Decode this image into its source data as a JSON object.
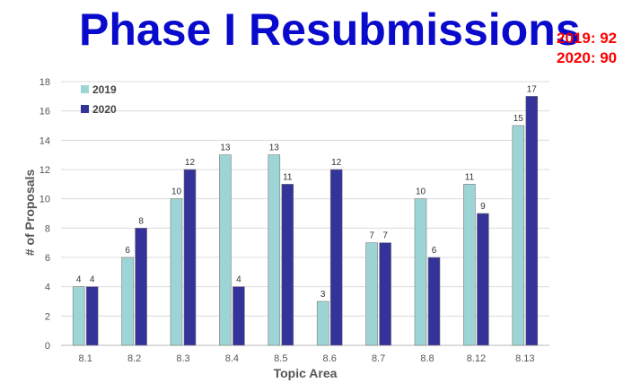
{
  "title": "Phase I Resubmissions",
  "totals": [
    {
      "label": "2019: 92"
    },
    {
      "label": "2020: 90"
    }
  ],
  "chart_data": {
    "type": "bar",
    "categories": [
      "8.1",
      "8.2",
      "8.3",
      "8.4",
      "8.5",
      "8.6",
      "8.7",
      "8.8",
      "8.12",
      "8.13"
    ],
    "series": [
      {
        "name": "2019",
        "color": "#9dd5d6",
        "values": [
          4,
          6,
          10,
          13,
          13,
          3,
          7,
          10,
          11,
          15
        ]
      },
      {
        "name": "2020",
        "color": "#333399",
        "values": [
          4,
          8,
          12,
          4,
          11,
          12,
          7,
          6,
          9,
          17
        ]
      }
    ],
    "xlabel": "Topic Area",
    "ylabel": "# of Proposals",
    "ylim": [
      0,
      18
    ],
    "yticks": [
      0,
      2,
      4,
      6,
      8,
      10,
      12,
      14,
      16,
      18
    ],
    "grid": true,
    "legend_position": "top-left"
  }
}
